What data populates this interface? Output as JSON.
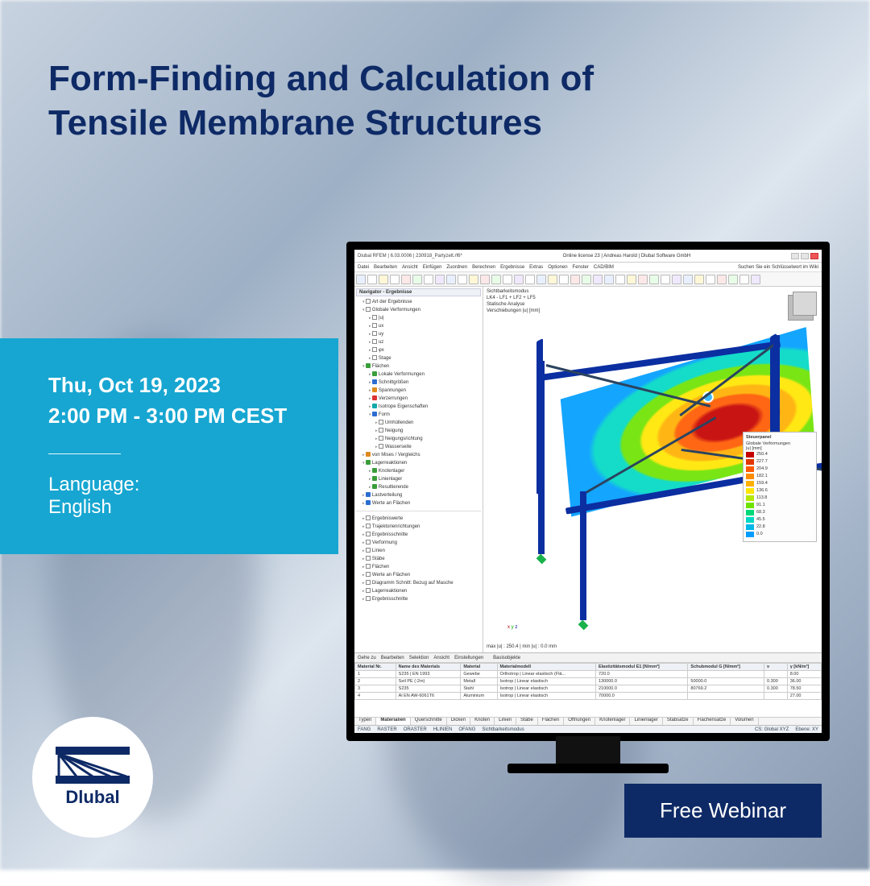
{
  "headline": {
    "line1": "Form-Finding and Calculation of",
    "line2": "Tensile Membrane Structures",
    "color": "#0e2a66",
    "fontsize": 44,
    "fontweight": 800
  },
  "info_box": {
    "date": "Thu, Oct 19, 2023",
    "time": "2:00 PM - 3:00 PM CEST",
    "language_label": "Language:",
    "language_value": "English",
    "bg_color": "#17a6d1",
    "text_color": "#ffffff"
  },
  "logo": {
    "brand": "Dlubal",
    "brand_color": "#0e2a66",
    "circle_bg": "#ffffff"
  },
  "cta": {
    "label": "Free Webinar",
    "bg": "#0e2a66",
    "fg": "#ffffff"
  },
  "app": {
    "title": "Dlubal RFEM | 6.03.0006 | 230918_Partyzelt.rf6*",
    "license": "Online license 23 | Andreas Harold | Dlubal Software GmbH",
    "searchbar": "Suchen Sie ein Schlüsselwort im Wiki",
    "menus": [
      "Datei",
      "Bearbeiten",
      "Ansicht",
      "Einfügen",
      "Zuordnen",
      "Berechnen",
      "Ergebnisse",
      "Extras",
      "Optionen",
      "Fenster",
      "CAD/BIM"
    ],
    "nav_title": "Navigator - Ergebnisse",
    "tree": {
      "root1": "Art der Ergebnisse",
      "root2": "Globale Verformungen",
      "gv_children": [
        "|u|",
        "ux",
        "uy",
        "uz",
        "φx",
        "Stage"
      ],
      "flachen": "Flächen",
      "flachen_children": [
        "Lokale Verformungen",
        "Schnittgrößen",
        "Spannungen",
        "Verzerrungen",
        "Isotrope Eigenschaften",
        "Form"
      ],
      "form_children": [
        "Umhüllenden",
        "Neigung",
        "Neigungsrichtung",
        "Wasserseite"
      ],
      "mises": "von Mises / Vergleichs",
      "lager": "Lagerreaktionen",
      "lager_children": [
        "Knotenlager",
        "Linienlager",
        "Resultierende"
      ],
      "last": "Lastverteilung",
      "werte": "Werte an Flächen",
      "bottom": [
        "Ergebniswerte",
        "Trajektorienrichtungen",
        "Ergebnisschnitte",
        "Verformung",
        "Linien",
        "Stäbe",
        "Flächen",
        "Werte an Flächen",
        "Diagramm Schnitt: Bezug auf Masche",
        "Lagerreaktionen",
        "Ergebnisschnitte"
      ]
    },
    "view": {
      "header_l1": "Sichtbarkeitsmodus",
      "header_l2": "LK4 - LF1 + LF2 + LF5",
      "header_l3": "Statische Analyse",
      "header_l4": "Verschiebungen |u| [mm]",
      "minmax": "max |u| : 250.4 | min |u| : 0.0 mm",
      "axis_x": "x",
      "axis_y": "y",
      "axis_z": "z",
      "beam_color": "#0b2ea1",
      "support_color": "#19b24a",
      "contour_colors": [
        "#c40000",
        "#ff5a00",
        "#ffb000",
        "#ffe600",
        "#6fe300",
        "#00d9c4",
        "#009dff"
      ]
    },
    "legend": {
      "panel_title": "Steuerpanel",
      "field_title": "Globale Verformungen",
      "field_unit": "|u| [mm]",
      "ticks": [
        250.4,
        227.7,
        204.9,
        182.1,
        159.4,
        136.6,
        113.8,
        91.1,
        68.3,
        45.5,
        22.8,
        0.0
      ],
      "colors": [
        "#c40000",
        "#e23600",
        "#ff5a00",
        "#ff8b00",
        "#ffb000",
        "#ffe600",
        "#b7e800",
        "#6fe300",
        "#00d97a",
        "#00d9c4",
        "#00b7e8",
        "#009dff"
      ]
    },
    "table": {
      "toolbar": [
        "Gehe zu",
        "Bearbeiten",
        "Selektion",
        "Ansicht",
        "Einstellungen"
      ],
      "dropdown": "Basisobjekte",
      "columns": [
        "Material Nr.",
        "Name des Materials",
        "Material",
        "Materialmodell",
        "Elastizitätsmodul E1 [N/mm²]",
        "Schubmodul G [N/mm²]",
        "ν",
        "γ [kN/m³]"
      ],
      "rows": [
        [
          "1",
          "S235 | EN 1993",
          "Gewebe",
          "Orthotrop | Linear elastisch (Flä...",
          "720.0",
          "",
          "",
          "8.00"
        ],
        [
          "2",
          "Seil PE (-2m)",
          "Metall",
          "Isotrop | Linear elastisch",
          "130000.0",
          "50000.0",
          "0.300",
          "36.00"
        ],
        [
          "3",
          "S235",
          "Stahl",
          "Isotrop | Linear elastisch",
          "210000.0",
          "80769.2",
          "0.300",
          "78.50"
        ],
        [
          "4",
          "Al EN AW-6061T6",
          "Aluminium",
          "Isotrop | Linear elastisch",
          "70000.0",
          "",
          "",
          "27.00"
        ]
      ]
    },
    "tabs": [
      "Typen",
      "Materialien",
      "Querschnitte",
      "Dicken",
      "Knoten",
      "Linien",
      "Stäbe",
      "Flächen",
      "Öffnungen",
      "Knotenlager",
      "Linienlager",
      "Stabsätze",
      "Flächensätze",
      "Volumen"
    ],
    "active_tab": "Materialien",
    "status": [
      "FANG",
      "RASTER",
      "ORASTER",
      "HLINIEN",
      "OFANG",
      "Sichtbarkeitsmodus",
      "CS: Global XYZ",
      "Ebene: XY"
    ]
  }
}
